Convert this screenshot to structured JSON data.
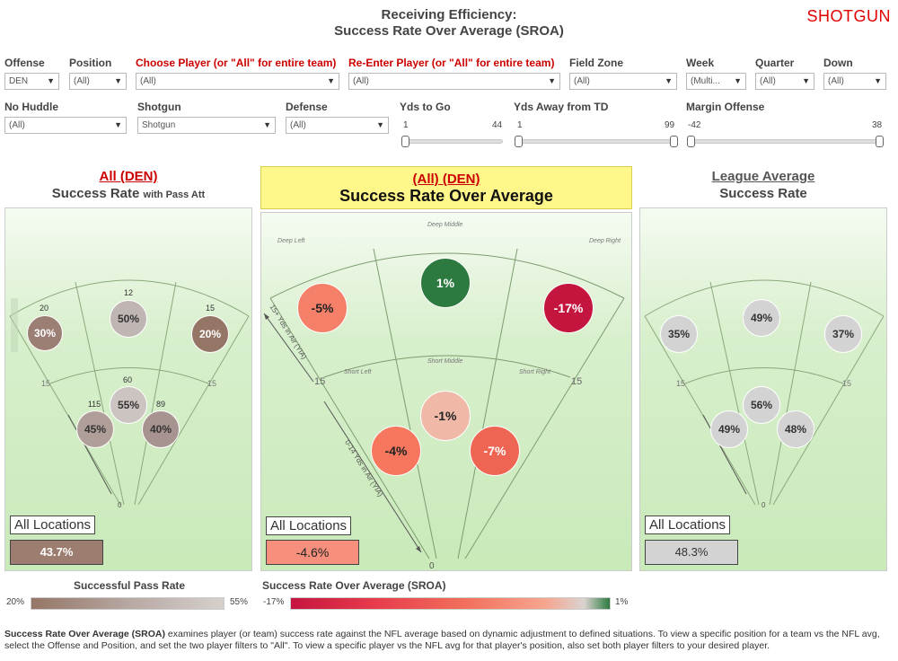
{
  "header": {
    "title_line1": "Receiving Efficiency:",
    "title_line2": "Success Rate Over Average (SROA)",
    "brand": "SHOTGUN"
  },
  "filters": {
    "offense": {
      "label": "Offense",
      "value": "DEN"
    },
    "position": {
      "label": "Position",
      "value": "(All)"
    },
    "choose_player": {
      "label": "Choose Player (or \"All\" for entire team)",
      "value": "(All)"
    },
    "reenter_player": {
      "label": "Re-Enter Player (or \"All\" for entire team)",
      "value": "(All)"
    },
    "field_zone": {
      "label": "Field Zone",
      "value": "(All)"
    },
    "week": {
      "label": "Week",
      "value": "(Multi..."
    },
    "quarter": {
      "label": "Quarter",
      "value": "(All)"
    },
    "down": {
      "label": "Down",
      "value": "(All)"
    },
    "no_huddle": {
      "label": "No Huddle",
      "value": "(All)"
    },
    "shotgun": {
      "label": "Shotgun",
      "value": "Shotgun"
    },
    "defense": {
      "label": "Defense",
      "value": "(All)"
    },
    "yds_to_go": {
      "label": "Yds to Go",
      "min": "1",
      "max": "44"
    },
    "yds_away_td": {
      "label": "Yds Away from TD",
      "min": "1",
      "max": "99"
    },
    "margin_offense": {
      "label": "Margin Offense",
      "min": "-42",
      "max": "38"
    }
  },
  "panels": {
    "left": {
      "title": "All (DEN)",
      "subtitle": "Success Rate",
      "subtitle_small": "with Pass Att",
      "zones": [
        {
          "name": "Deep Left",
          "value": "30%",
          "count": "20",
          "color": "#9b7e74"
        },
        {
          "name": "Deep Middle",
          "value": "50%",
          "count": "12",
          "color": "#bfb5b2"
        },
        {
          "name": "Deep Right",
          "value": "20%",
          "count": "15",
          "color": "#957666"
        },
        {
          "name": "Short Left",
          "value": "45%",
          "count": "115",
          "color": "#b09f99"
        },
        {
          "name": "Short Middle",
          "value": "55%",
          "count": "60",
          "color": "#cbc4c1"
        },
        {
          "name": "Short Right",
          "value": "40%",
          "count": "89",
          "color": "#a79390"
        }
      ],
      "all_locations_label": "All Locations",
      "all_locations_value": "43.7%",
      "all_color": "#9c7d70"
    },
    "center": {
      "title": "(All) (DEN)",
      "subtitle": "Success Rate Over Average",
      "zones": [
        {
          "name": "Deep Left",
          "value": "-5%",
          "color": "#f4806a"
        },
        {
          "name": "Deep Middle",
          "value": "1%",
          "color": "#2c7a3f"
        },
        {
          "name": "Deep Right",
          "value": "-17%",
          "color": "#c4153f"
        },
        {
          "name": "Short Left",
          "value": "-4%",
          "color": "#f6765e"
        },
        {
          "name": "Short Middle",
          "value": "-1%",
          "color": "#f0b9a7"
        },
        {
          "name": "Short Right",
          "value": "-7%",
          "color": "#ef6554"
        }
      ],
      "zone_labels": {
        "deep_left": "Deep Left",
        "deep_middle": "Deep Middle",
        "deep_right": "Deep Right",
        "short_left": "Short Left",
        "short_middle": "Short Middle",
        "short_right": "Short Right"
      },
      "air_label_top": "15+ Yds in Air (YIA)",
      "air_label_bottom": "0-14 Yds in Air (YIA)",
      "yard_15": "15",
      "yard_0": "0",
      "all_locations_label": "All Locations",
      "all_locations_value": "-4.6%",
      "all_color": "#f6907c"
    },
    "right": {
      "title": "League Average",
      "subtitle": "Success Rate",
      "zones": [
        {
          "name": "Deep Left",
          "value": "35%"
        },
        {
          "name": "Deep Middle",
          "value": "49%"
        },
        {
          "name": "Deep Right",
          "value": "37%"
        },
        {
          "name": "Short Left",
          "value": "49%"
        },
        {
          "name": "Short Middle",
          "value": "56%"
        },
        {
          "name": "Short Right",
          "value": "48%"
        }
      ],
      "all_locations_label": "All Locations",
      "all_locations_value": "48.3%",
      "all_color": "#d3d3d3"
    }
  },
  "legends": {
    "left": {
      "title": "Successful Pass Rate",
      "min": "20%",
      "max": "55%"
    },
    "center": {
      "title": "Success Rate Over Average (SROA)",
      "min": "-17%",
      "max": "1%"
    }
  },
  "footer": {
    "bold": "Success Rate Over Average (SROA)",
    "text": " examines player (or team) success rate against the NFL average based on dynamic adjustment to defined situations. To view a specific position for a team vs the NFL avg, select the Offense and Position, and set the two player filters to \"All\". To view a specific player vs the NFL avg for that player's position, also set both player filters to your desired player."
  }
}
